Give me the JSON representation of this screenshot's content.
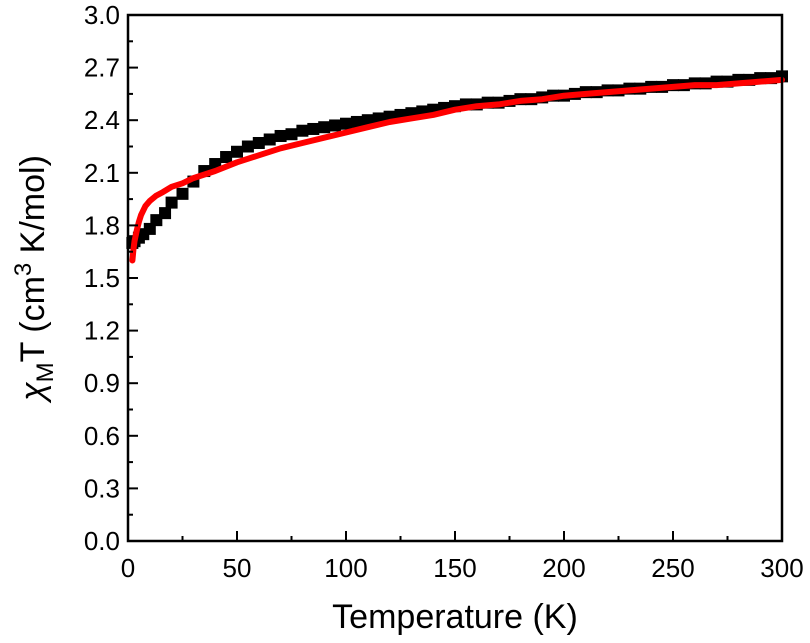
{
  "chart_data": {
    "type": "scatter",
    "xlabel": "Temperature (K)",
    "ylabel_parts": {
      "chi": "χ",
      "chi_sub": "M",
      "t": "T (cm",
      "sup": "3",
      "rest": " K/mol)"
    },
    "xlim": [
      0,
      300
    ],
    "ylim": [
      0.0,
      3.0
    ],
    "x_ticks": [
      "0",
      "50",
      "100",
      "150",
      "200",
      "250",
      "300"
    ],
    "y_ticks": [
      "0.0",
      "0.3",
      "0.6",
      "0.9",
      "1.2",
      "1.5",
      "1.8",
      "2.1",
      "2.4",
      "2.7",
      "3.0"
    ],
    "grid": false,
    "series": [
      {
        "kind": "markers",
        "marker": "square",
        "color": "#000000",
        "x": [
          2,
          3,
          5,
          7,
          10,
          13,
          17,
          20,
          25,
          30,
          35,
          40,
          45,
          50,
          55,
          60,
          65,
          70,
          75,
          80,
          85,
          90,
          95,
          100,
          105,
          110,
          115,
          120,
          125,
          130,
          135,
          140,
          145,
          150,
          155,
          160,
          165,
          170,
          175,
          180,
          185,
          190,
          195,
          200,
          205,
          210,
          215,
          220,
          225,
          230,
          235,
          240,
          245,
          250,
          255,
          260,
          265,
          270,
          275,
          280,
          285,
          290,
          295,
          300
        ],
        "y": [
          1.7,
          1.71,
          1.73,
          1.75,
          1.78,
          1.83,
          1.87,
          1.93,
          1.98,
          2.05,
          2.11,
          2.15,
          2.19,
          2.22,
          2.25,
          2.27,
          2.29,
          2.31,
          2.32,
          2.34,
          2.35,
          2.36,
          2.37,
          2.38,
          2.39,
          2.4,
          2.41,
          2.42,
          2.43,
          2.44,
          2.45,
          2.46,
          2.47,
          2.48,
          2.49,
          2.49,
          2.5,
          2.5,
          2.51,
          2.52,
          2.52,
          2.53,
          2.54,
          2.54,
          2.55,
          2.56,
          2.56,
          2.57,
          2.57,
          2.58,
          2.58,
          2.59,
          2.59,
          2.6,
          2.6,
          2.61,
          2.61,
          2.62,
          2.62,
          2.63,
          2.63,
          2.64,
          2.64,
          2.65
        ]
      },
      {
        "kind": "line",
        "color": "#ff0000",
        "x": [
          2,
          2.5,
          3,
          4,
          5,
          6,
          8,
          10,
          13,
          16,
          20,
          25,
          30,
          40,
          50,
          60,
          70,
          80,
          90,
          100,
          110,
          120,
          130,
          140,
          150,
          160,
          170,
          180,
          190,
          200,
          210,
          220,
          230,
          240,
          250,
          260,
          270,
          280,
          290,
          300
        ],
        "y": [
          1.6,
          1.66,
          1.71,
          1.77,
          1.82,
          1.86,
          1.91,
          1.94,
          1.97,
          1.99,
          2.02,
          2.04,
          2.07,
          2.11,
          2.16,
          2.2,
          2.24,
          2.27,
          2.3,
          2.33,
          2.36,
          2.39,
          2.41,
          2.43,
          2.46,
          2.48,
          2.49,
          2.51,
          2.52,
          2.54,
          2.55,
          2.56,
          2.57,
          2.58,
          2.59,
          2.6,
          2.6,
          2.61,
          2.62,
          2.63
        ]
      }
    ]
  }
}
